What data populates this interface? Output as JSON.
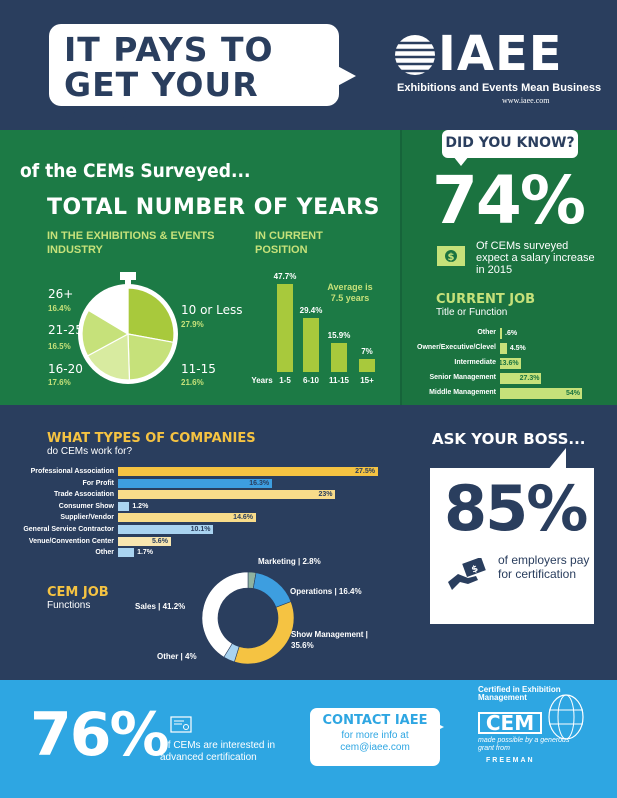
{
  "header": {
    "title": "IT PAYS TO GET YOUR CEM...",
    "logo": "IAEE",
    "tagline": "Exhibitions and Events Mean Business",
    "url": "www.iaee.com"
  },
  "years": {
    "intro": "of the CEMs Surveyed...",
    "title": "TOTAL NUMBER OF YEARS",
    "industry_header": "IN THE EXHIBITIONS & EVENTS INDUSTRY",
    "position_header": "IN CURRENT POSITION",
    "industry_pie": [
      {
        "label": "10 or Less",
        "value": "27.9%"
      },
      {
        "label": "11-15",
        "value": "21.6%"
      },
      {
        "label": "16-20",
        "value": "17.6%"
      },
      {
        "label": "21-25",
        "value": "16.5%"
      },
      {
        "label": "26+",
        "value": "16.4%"
      }
    ],
    "position_bars": {
      "axis_label": "Years",
      "average_note": "Average is 7.5 years",
      "bars": [
        {
          "category": "1-5",
          "label": "47.7%",
          "value": 47.7
        },
        {
          "category": "6-10",
          "label": "29.4%",
          "value": 29.4
        },
        {
          "category": "11-15",
          "label": "15.9%",
          "value": 15.9
        },
        {
          "category": "15+",
          "label": "7%",
          "value": 7
        }
      ]
    }
  },
  "did_you_know": {
    "label": "DID YOU KNOW?",
    "stat": "74%",
    "text": "Of CEMs surveyed expect a salary increase in 2015",
    "current_job_title": "CURRENT JOB",
    "current_job_sub": "Title or Function",
    "jobs": [
      {
        "label": "Other",
        "pct": ".6%",
        "value": 0.6
      },
      {
        "label": "Owner/Executive/Clevel",
        "pct": "4.5%",
        "value": 4.5
      },
      {
        "label": "Intermediate",
        "pct": "13.6%",
        "value": 13.6
      },
      {
        "label": "Senior Management",
        "pct": "27.3%",
        "value": 27.3
      },
      {
        "label": "Middle Management",
        "pct": "54%",
        "value": 54
      }
    ]
  },
  "companies": {
    "title": "WHAT TYPES OF COMPANIES",
    "subtitle": "do CEMs work for?",
    "items": [
      {
        "label": "Professional Association",
        "pct": "27.5%",
        "value": 27.5,
        "color": "#f5c342"
      },
      {
        "label": "For Profit",
        "pct": "16.3%",
        "value": 16.3,
        "color": "#3d9ee0"
      },
      {
        "label": "Trade Association",
        "pct": "23%",
        "value": 23,
        "color": "#f8dc8a"
      },
      {
        "label": "Consumer Show",
        "pct": "1.2%",
        "value": 1.2,
        "color": "#a9d3f0"
      },
      {
        "label": "Supplier/Vendor",
        "pct": "14.6%",
        "value": 14.6,
        "color": "#f8dc8a"
      },
      {
        "label": "General Service Contractor",
        "pct": "10.1%",
        "value": 10.1,
        "color": "#a9d3f0"
      },
      {
        "label": "Venue/Convention Center",
        "pct": "5.6%",
        "value": 5.6,
        "color": "#f8e6b0"
      },
      {
        "label": "Other",
        "pct": "1.7%",
        "value": 1.7,
        "color": "#a9d3f0"
      }
    ]
  },
  "cem_job": {
    "title": "CEM JOB",
    "subtitle": "Functions",
    "slices": [
      {
        "label": "Marketing | 2.8%",
        "value": 2.8,
        "color": "#8fb3a0"
      },
      {
        "label": "Operations | 16.4%",
        "value": 16.4,
        "color": "#3d9ee0"
      },
      {
        "label": "Show Management | 35.6%",
        "value": 35.6,
        "color": "#f5c342"
      },
      {
        "label": "Other | 4%",
        "value": 4,
        "color": "#a9d3f0"
      },
      {
        "label": "Sales | 41.2%",
        "value": 41.2,
        "color": "#ffffff"
      }
    ]
  },
  "ask_boss": {
    "label": "ASK YOUR BOSS...",
    "stat": "85%",
    "text": "of employers pay for certification"
  },
  "bottom": {
    "stat": "76%",
    "text": "Of CEMs are interested in advanced certification",
    "contact_title": "CONTACT IAEE",
    "contact_sub": "for more info at cem@iaee.com",
    "cem_cert": "Certified in Exhibition Management",
    "cem_logo": "CEM",
    "grant_text": "made possible by a generous grant from",
    "sponsor": "FREEMAN"
  }
}
